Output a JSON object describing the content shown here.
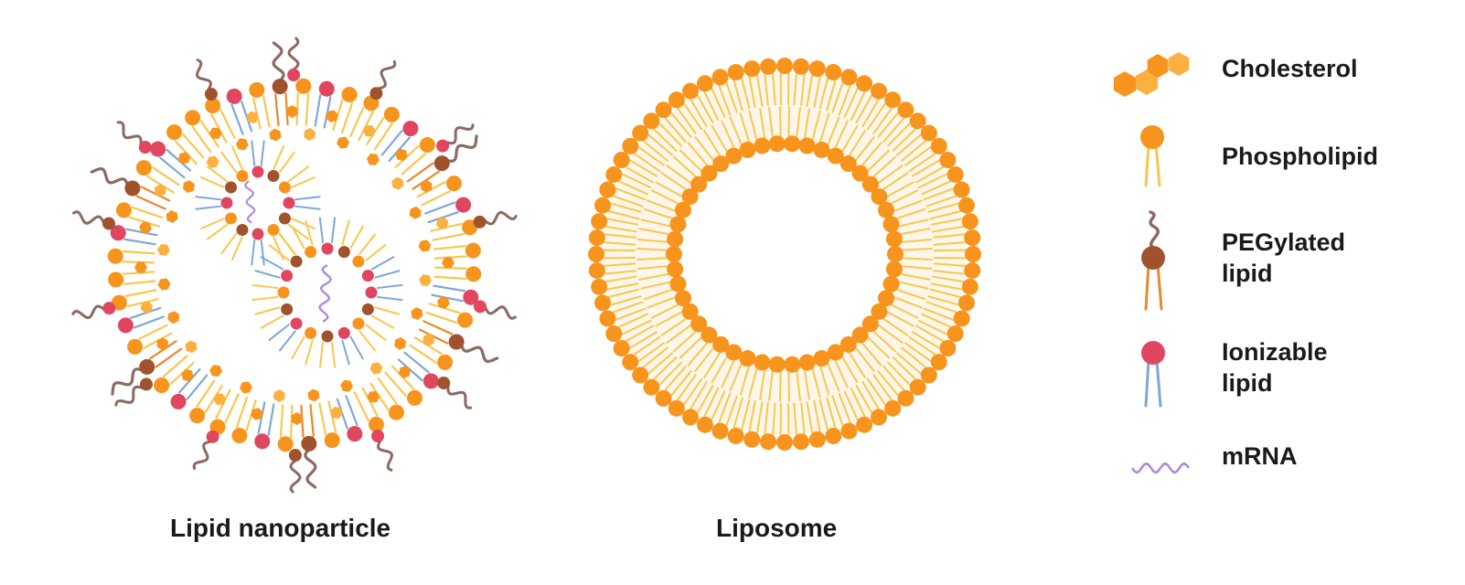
{
  "captions": {
    "lnp": "Lipid nanoparticle",
    "liposome": "Liposome"
  },
  "legend": {
    "cholesterol": "Cholesterol",
    "phospholipid": "Phospholipid",
    "pegylated_1": "PEGylated",
    "pegylated_2": "lipid",
    "ionizable_1": "Ionizable",
    "ionizable_2": "lipid",
    "mrna": "mRNA"
  },
  "colors": {
    "phospholipid_head": "#f7941d",
    "phospholipid_tail": "#f9c74f",
    "cholesterol": "#f7941d",
    "cholesterol_light": "#fbb040",
    "peg_head": "#a0522d",
    "peg_chain": "#8b6b61",
    "peg_tail": "#e8892c",
    "ionizable_head": "#e0465f",
    "ionizable_tail": "#7fa7d6",
    "mrna": "#b28bd6",
    "text": "#1a1a1a"
  }
}
